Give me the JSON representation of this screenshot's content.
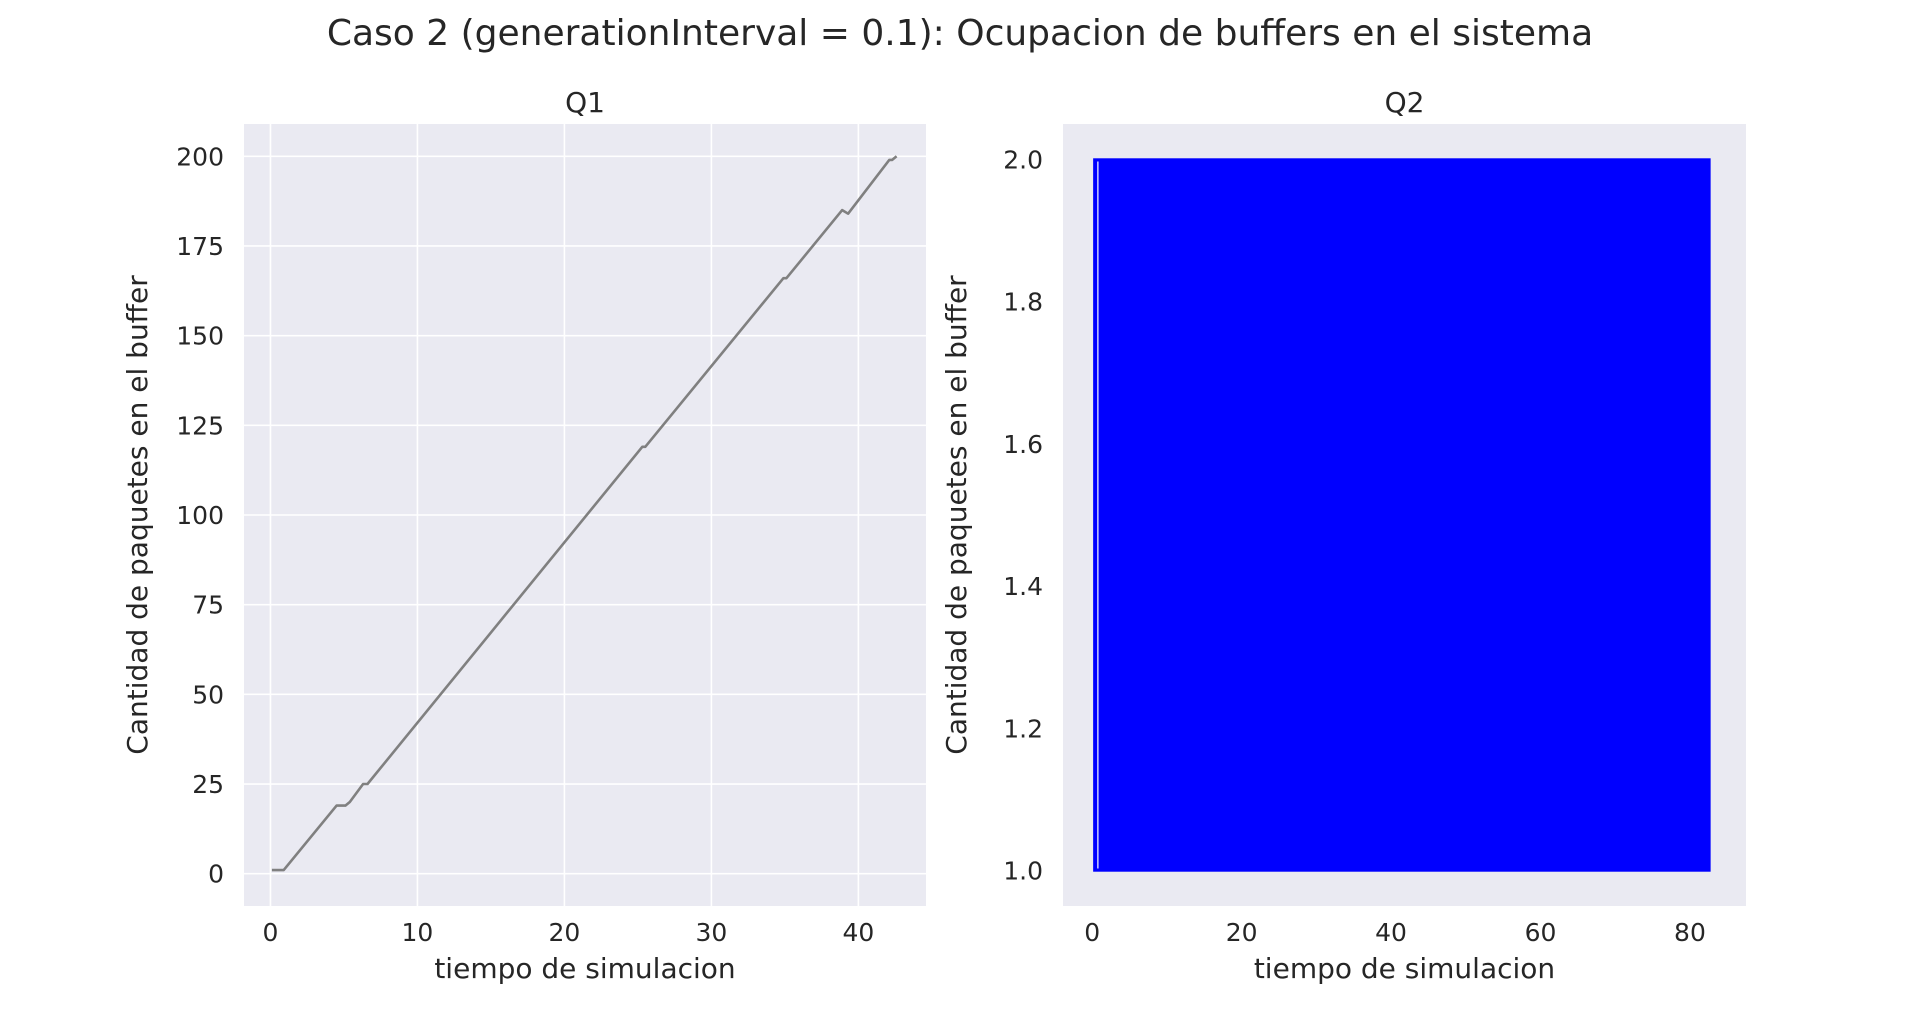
{
  "figure": {
    "suptitle": "Caso 2 (generationInterval = 0.1): Ocupacion de buffers en el sistema",
    "background": "#ffffff",
    "axes_facecolor": "#eaeaf2",
    "grid_color": "#ffffff"
  },
  "chart_data": [
    {
      "type": "line",
      "title": "Q1",
      "xlabel": "tiempo de simulacion",
      "ylabel": "Cantidad de paquetes en el buffer",
      "xlim": [
        -1.8,
        44.6
      ],
      "ylim": [
        -9,
        209
      ],
      "xticks": [
        0,
        10,
        20,
        30,
        40
      ],
      "yticks": [
        0,
        25,
        50,
        75,
        100,
        125,
        150,
        175,
        200
      ],
      "xtick_labels": [
        "0",
        "10",
        "20",
        "30",
        "40"
      ],
      "ytick_labels": [
        "0",
        "25",
        "50",
        "75",
        "100",
        "125",
        "150",
        "175",
        "200"
      ],
      "grid": true,
      "series": [
        {
          "color": "#808080",
          "x": [
            0.1,
            0.9,
            4.5,
            5.1,
            5.4,
            6.3,
            6.6,
            25.3,
            25.5,
            34.9,
            35.1,
            38.9,
            39.3,
            42.1,
            42.3,
            42.6
          ],
          "y": [
            1,
            1,
            19,
            19,
            20,
            25,
            25,
            119,
            119,
            166,
            166,
            185,
            184,
            199,
            199,
            200
          ]
        }
      ]
    },
    {
      "type": "line",
      "title": "Q2",
      "xlabel": "tiempo de simulacion",
      "ylabel": "Cantidad de paquetes en el buffer",
      "xlim": [
        -3.9,
        87.5
      ],
      "ylim": [
        0.95,
        2.05
      ],
      "xticks": [
        0,
        20,
        40,
        60,
        80
      ],
      "yticks": [
        1.0,
        1.2,
        1.4,
        1.6,
        1.8,
        2.0
      ],
      "xtick_labels": [
        "0",
        "20",
        "40",
        "60",
        "80"
      ],
      "ytick_labels": [
        "1.0",
        "1.2",
        "1.4",
        "1.6",
        "1.8",
        "2.0"
      ],
      "grid": false,
      "series": [
        {
          "color": "#0000ff",
          "x_range": [
            0.3,
            82.6
          ],
          "y_range": [
            1.0,
            2.0
          ],
          "oscillating": true
        }
      ]
    }
  ]
}
